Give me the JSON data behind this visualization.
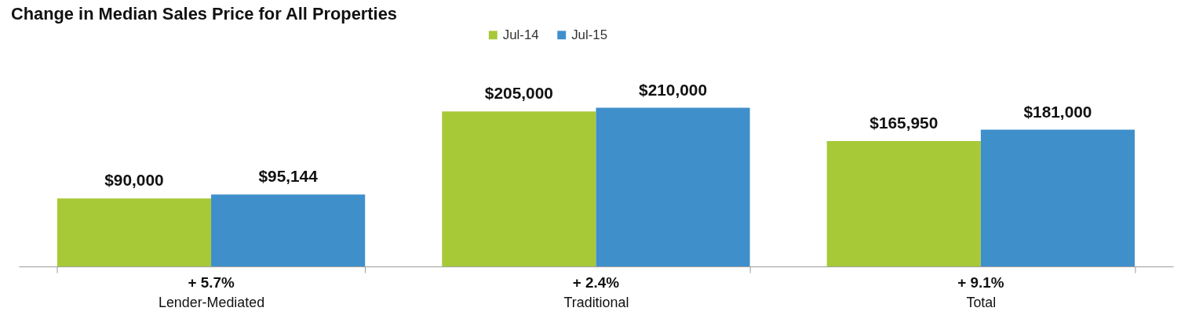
{
  "chart_data": {
    "type": "bar",
    "title": "Change in Median Sales Price for All Properties",
    "categories": [
      "Lender-Mediated",
      "Traditional",
      "Total"
    ],
    "series": [
      {
        "name": "Jul-14",
        "color": "#a8c937",
        "values": [
          90000,
          205000,
          165950
        ],
        "value_labels": [
          "$90,000",
          "$205,000",
          "$165,950"
        ]
      },
      {
        "name": "Jul-15",
        "color": "#3f8fcb",
        "values": [
          95144,
          210000,
          181000
        ],
        "value_labels": [
          "$95,144",
          "$210,000",
          "$181,000"
        ]
      }
    ],
    "annotations": [
      "+ 5.7%",
      "+ 2.4%",
      "+ 9.1%"
    ],
    "legend": "top",
    "grid": false,
    "tick_labels": "x"
  }
}
